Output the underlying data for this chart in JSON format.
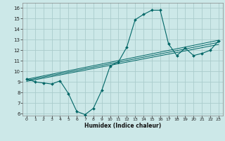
{
  "xlabel": "Humidex (Indice chaleur)",
  "bg_color": "#cce8e8",
  "grid_color": "#aacccc",
  "line_color": "#006666",
  "xlim": [
    -0.5,
    23.5
  ],
  "ylim": [
    5.8,
    16.5
  ],
  "yticks": [
    6,
    7,
    8,
    9,
    10,
    11,
    12,
    13,
    14,
    15,
    16
  ],
  "xticks": [
    0,
    1,
    2,
    3,
    4,
    5,
    6,
    7,
    8,
    9,
    10,
    11,
    12,
    13,
    14,
    15,
    16,
    17,
    18,
    19,
    20,
    21,
    22,
    23
  ],
  "curve1_x": [
    0,
    1,
    2,
    3,
    4,
    5,
    6,
    7,
    8,
    9,
    10,
    11,
    12,
    13,
    14,
    15,
    16,
    17,
    18,
    19,
    20,
    21,
    22,
    23
  ],
  "curve1_y": [
    9.3,
    9.0,
    8.9,
    8.8,
    9.1,
    7.9,
    6.2,
    5.9,
    6.5,
    8.2,
    10.5,
    10.9,
    12.3,
    14.9,
    15.4,
    15.8,
    15.8,
    12.6,
    11.5,
    12.2,
    11.5,
    11.7,
    12.0,
    12.9
  ],
  "line1_x": [
    0,
    23
  ],
  "line1_y": [
    9.05,
    12.55
  ],
  "line2_x": [
    0,
    23
  ],
  "line2_y": [
    9.15,
    12.75
  ],
  "line3_x": [
    0,
    23
  ],
  "line3_y": [
    9.25,
    12.95
  ]
}
